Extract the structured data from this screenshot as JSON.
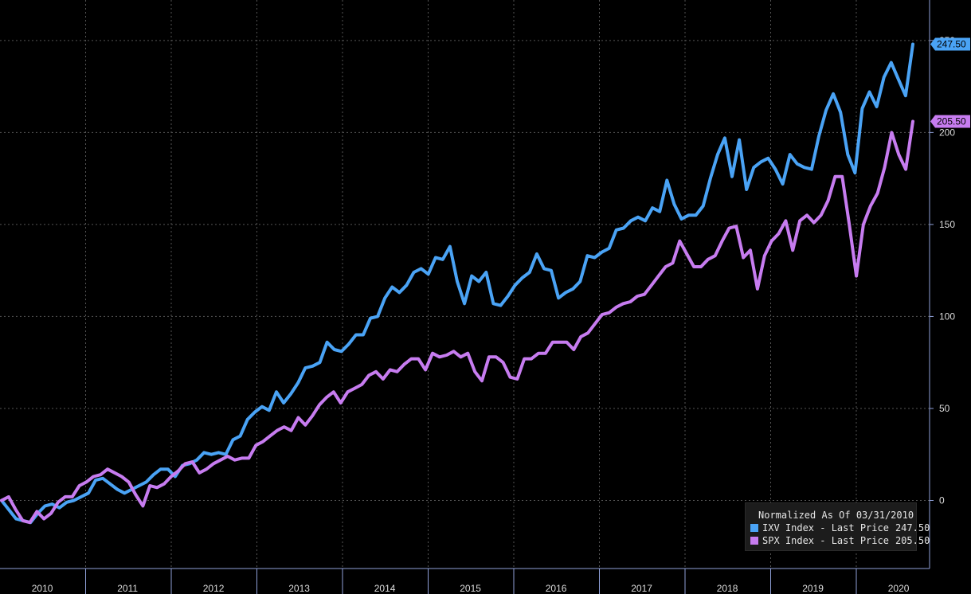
{
  "chart_data": {
    "type": "line",
    "yticks": [
      0,
      50,
      100,
      150,
      200,
      250
    ],
    "ylim": [
      -37,
      272
    ],
    "x_labels": [
      "2010",
      "2011",
      "2012",
      "2013",
      "2014",
      "2015",
      "2016",
      "2017",
      "2018",
      "2019",
      "2020"
    ],
    "grid": true,
    "legend_placement": "bottom-right",
    "legend_title": "Normalized As Of 03/31/2010",
    "series": [
      {
        "name": "IXV Index - Last Price",
        "last_value": "247.50",
        "color": "#4aa3f5",
        "values": [
          0,
          -5,
          -10,
          -11,
          -12,
          -7,
          -3,
          -2,
          -4,
          -1,
          0,
          2,
          4,
          11,
          12,
          9,
          6,
          4,
          6,
          8,
          10,
          14,
          17,
          17,
          13,
          19,
          20,
          22,
          26,
          25,
          26,
          25,
          33,
          35,
          44,
          48,
          51,
          49,
          59,
          53,
          58,
          64,
          72,
          73,
          75,
          86,
          82,
          81,
          85,
          90,
          90,
          99,
          100,
          110,
          116,
          113,
          117,
          124,
          126,
          123,
          132,
          131,
          138,
          119,
          107,
          122,
          119,
          124,
          107,
          106,
          111,
          117,
          121,
          124,
          134,
          126,
          125,
          110,
          113,
          115,
          119,
          133,
          132,
          135,
          137,
          147,
          148,
          152,
          154,
          152,
          159,
          157,
          174,
          161,
          153,
          155,
          155,
          160,
          175,
          188,
          197,
          176,
          196,
          169,
          181,
          184,
          186,
          180,
          172,
          188,
          183,
          181,
          180,
          198,
          212,
          221,
          211,
          188,
          178,
          213,
          222,
          214,
          230,
          238,
          229,
          220,
          248
        ],
        "final_label": "247.50"
      },
      {
        "name": "SPX Index - Last Price",
        "last_value": "205.50",
        "color": "#c77cf0",
        "values": [
          0,
          2,
          -5,
          -11,
          -12,
          -6,
          -10,
          -7,
          -1,
          2,
          2,
          8,
          10,
          13,
          14,
          17,
          15,
          13,
          10,
          3,
          -3,
          8,
          7,
          9,
          13,
          16,
          20,
          21,
          15,
          17,
          20,
          22,
          24,
          22,
          23,
          23,
          30,
          32,
          35,
          38,
          40,
          38,
          45,
          41,
          46,
          52,
          56,
          59,
          53,
          59,
          61,
          63,
          68,
          70,
          66,
          71,
          70,
          74,
          77,
          77,
          71,
          80,
          78,
          79,
          81,
          78,
          80,
          70,
          65,
          78,
          78,
          75,
          67,
          66,
          77,
          77,
          80,
          80,
          86,
          86,
          86,
          82,
          89,
          91,
          96,
          101,
          102,
          105,
          107,
          108,
          111,
          112,
          117,
          122,
          127,
          129,
          141,
          134,
          127,
          127,
          131,
          133,
          141,
          148,
          149,
          132,
          136,
          115,
          133,
          141,
          145,
          152,
          136,
          152,
          155,
          151,
          155,
          163,
          176,
          176,
          150,
          122,
          150,
          160,
          167,
          181,
          200,
          188,
          180,
          206
        ],
        "final_label": "205.50"
      }
    ]
  }
}
